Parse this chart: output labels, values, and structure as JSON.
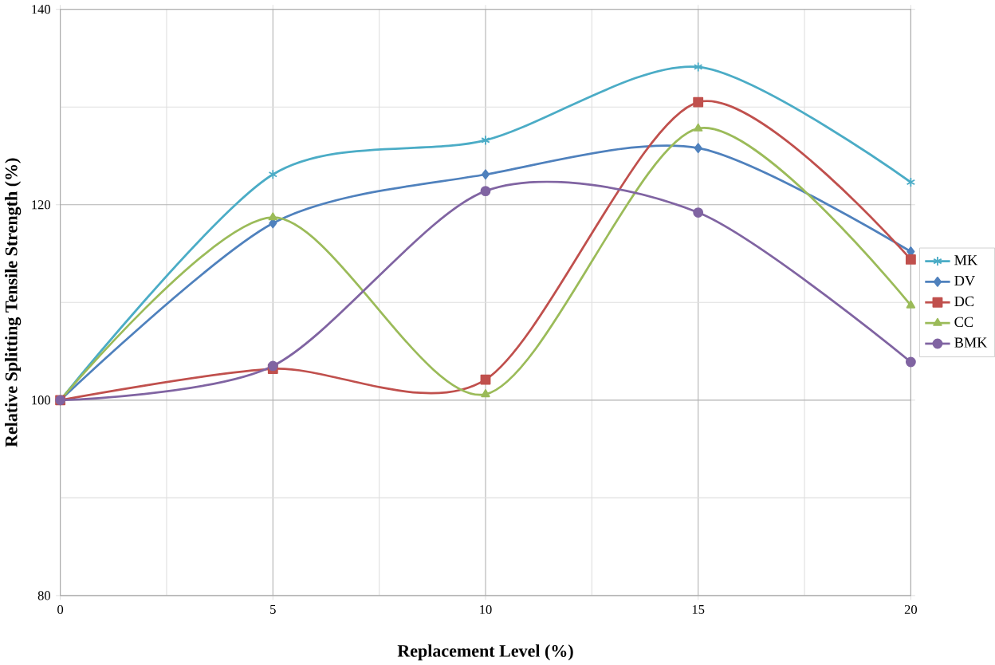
{
  "chart_data": {
    "type": "line",
    "xlabel": "Replacement Level (%)",
    "ylabel": "Relative Splitting Tensile Strength (%)",
    "x": [
      0,
      5,
      10,
      15,
      20
    ],
    "xlim": [
      0,
      20
    ],
    "xticks": [
      0,
      5,
      10,
      15,
      20
    ],
    "ylim": [
      80,
      140
    ],
    "yticks": [
      80,
      100,
      120,
      140
    ],
    "grid": true,
    "legend": "right",
    "series": [
      {
        "name": "MK",
        "color": "#4bacc6",
        "marker": "cross",
        "values": [
          100,
          123.1,
          126.6,
          134.1,
          122.3
        ]
      },
      {
        "name": "DV",
        "color": "#4f81bd",
        "marker": "diamond",
        "values": [
          100,
          118.1,
          123.1,
          125.8,
          115.2
        ]
      },
      {
        "name": "DC",
        "color": "#c0504d",
        "marker": "square",
        "values": [
          100,
          103.2,
          102.1,
          130.5,
          114.4
        ]
      },
      {
        "name": "CC",
        "color": "#9bbb59",
        "marker": "triangle",
        "values": [
          100,
          118.7,
          100.6,
          127.8,
          109.7
        ]
      },
      {
        "name": "BMK",
        "color": "#8064a2",
        "marker": "circle",
        "values": [
          100,
          103.5,
          121.4,
          119.2,
          103.9
        ]
      }
    ]
  }
}
